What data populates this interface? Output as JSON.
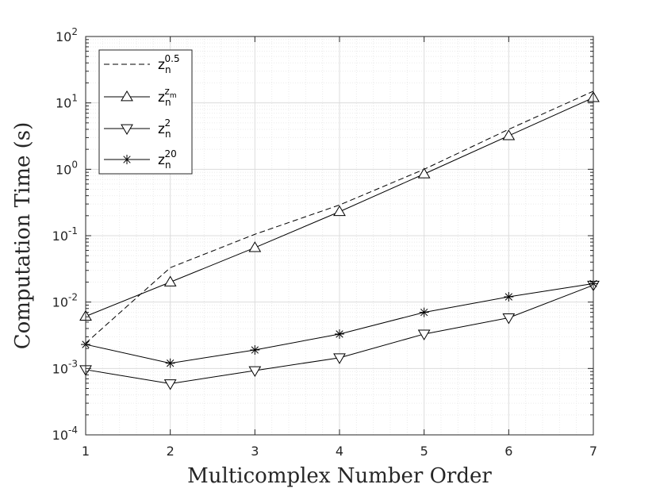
{
  "chart_data": {
    "type": "line",
    "title": "",
    "xlabel": "Multicomplex Number Order",
    "ylabel": "Computation Time (s)",
    "xlim": [
      1,
      7
    ],
    "ylim": [
      0.0001,
      100
    ],
    "yscale": "log",
    "grid": true,
    "minor_grid": true,
    "legend_position": "top-left",
    "x_ticks": [
      "1",
      "2",
      "3",
      "4",
      "5",
      "6",
      "7"
    ],
    "y_ticks": [
      {
        "value": 0.0001,
        "base": "10",
        "exp": "-4"
      },
      {
        "value": 0.001,
        "base": "10",
        "exp": "-3"
      },
      {
        "value": 0.01,
        "base": "10",
        "exp": "-2"
      },
      {
        "value": 0.1,
        "base": "10",
        "exp": "-1"
      },
      {
        "value": 1,
        "base": "10",
        "exp": "0"
      },
      {
        "value": 10,
        "base": "10",
        "exp": "1"
      },
      {
        "value": 100,
        "base": "10",
        "exp": "2"
      }
    ],
    "x": [
      1,
      2,
      3,
      4,
      5,
      6,
      7
    ],
    "series": [
      {
        "id": "s1",
        "legend_base": "z",
        "legend_sub": "n",
        "legend_sup": "0.5",
        "legend_subsup": "",
        "marker": "none",
        "dash": true,
        "values": [
          0.0024,
          0.033,
          0.105,
          0.29,
          1.0,
          4.0,
          15.0
        ]
      },
      {
        "id": "s2",
        "legend_base": "z",
        "legend_sub": "n",
        "legend_sup": "z",
        "legend_subsup": "m",
        "marker": "triangle-up",
        "dash": false,
        "values": [
          0.0061,
          0.02,
          0.066,
          0.23,
          0.85,
          3.2,
          12.0
        ]
      },
      {
        "id": "s3",
        "legend_base": "z",
        "legend_sub": "n",
        "legend_sup": "2",
        "legend_subsup": "",
        "marker": "triangle-down",
        "dash": false,
        "values": [
          0.00096,
          0.00059,
          0.00093,
          0.00145,
          0.0033,
          0.0058,
          0.018
        ]
      },
      {
        "id": "s4",
        "legend_base": "z",
        "legend_sub": "n",
        "legend_sup": "20",
        "legend_subsup": "",
        "marker": "asterisk",
        "dash": false,
        "values": [
          0.0023,
          0.0012,
          0.0019,
          0.0033,
          0.007,
          0.012,
          0.019
        ]
      }
    ],
    "colors": {
      "line": "#000000",
      "axis": "#262626",
      "grid": "#dcdcdc",
      "minor_grid": "#ebebeb"
    }
  }
}
